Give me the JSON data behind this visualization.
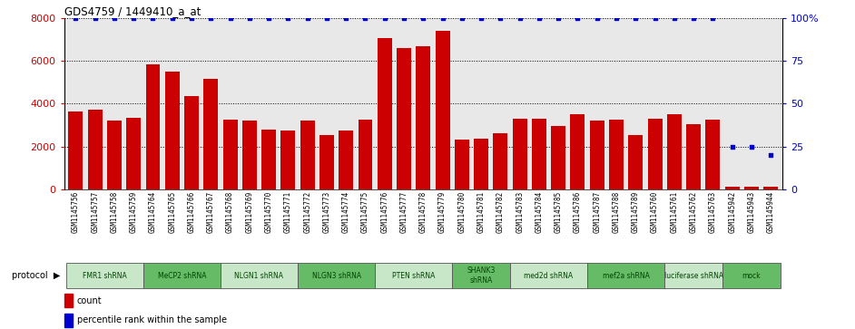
{
  "title": "GDS4759 / 1449410_a_at",
  "samples": [
    "GSM1145756",
    "GSM1145757",
    "GSM1145758",
    "GSM1145759",
    "GSM1145764",
    "GSM1145765",
    "GSM1145766",
    "GSM1145767",
    "GSM1145768",
    "GSM1145769",
    "GSM1145770",
    "GSM1145771",
    "GSM1145772",
    "GSM1145773",
    "GSM1145774",
    "GSM1145775",
    "GSM1145776",
    "GSM1145777",
    "GSM1145778",
    "GSM1145779",
    "GSM1145780",
    "GSM1145781",
    "GSM1145782",
    "GSM1145783",
    "GSM1145784",
    "GSM1145785",
    "GSM1145786",
    "GSM1145787",
    "GSM1145788",
    "GSM1145789",
    "GSM1145760",
    "GSM1145761",
    "GSM1145762",
    "GSM1145763",
    "GSM1145942",
    "GSM1145943",
    "GSM1145944"
  ],
  "counts": [
    3650,
    3700,
    3200,
    3350,
    5850,
    5500,
    4350,
    5150,
    3250,
    3200,
    2800,
    2750,
    3200,
    2550,
    2750,
    3250,
    7050,
    6600,
    6700,
    7400,
    2300,
    2350,
    2600,
    3300,
    3300,
    2950,
    3500,
    3200,
    3250,
    2550,
    3300,
    3500,
    3050,
    3250,
    100,
    100,
    100
  ],
  "percentiles": [
    100,
    100,
    100,
    100,
    100,
    100,
    100,
    100,
    100,
    100,
    100,
    100,
    100,
    100,
    100,
    100,
    100,
    100,
    100,
    100,
    100,
    100,
    100,
    100,
    100,
    100,
    100,
    100,
    100,
    100,
    100,
    100,
    100,
    100,
    25,
    25,
    20
  ],
  "protocols": [
    {
      "label": "FMR1 shRNA",
      "start": 0,
      "end": 4,
      "color": "#c8e6c8"
    },
    {
      "label": "MeCP2 shRNA",
      "start": 4,
      "end": 8,
      "color": "#66bb66"
    },
    {
      "label": "NLGN1 shRNA",
      "start": 8,
      "end": 12,
      "color": "#c8e6c8"
    },
    {
      "label": "NLGN3 shRNA",
      "start": 12,
      "end": 16,
      "color": "#66bb66"
    },
    {
      "label": "PTEN shRNA",
      "start": 16,
      "end": 20,
      "color": "#c8e6c8"
    },
    {
      "label": "SHANK3\nshRNA",
      "start": 20,
      "end": 23,
      "color": "#66bb66"
    },
    {
      "label": "med2d shRNA",
      "start": 23,
      "end": 27,
      "color": "#c8e6c8"
    },
    {
      "label": "mef2a shRNA",
      "start": 27,
      "end": 31,
      "color": "#66bb66"
    },
    {
      "label": "luciferase shRNA",
      "start": 31,
      "end": 34,
      "color": "#c8e6c8"
    },
    {
      "label": "mock",
      "start": 34,
      "end": 37,
      "color": "#66bb66"
    }
  ],
  "bar_color": "#cc0000",
  "dot_color": "#0000cc",
  "left_ylim": [
    0,
    8000
  ],
  "right_ylim": [
    0,
    100
  ],
  "left_yticks": [
    0,
    2000,
    4000,
    6000,
    8000
  ],
  "right_yticks": [
    0,
    25,
    50,
    75,
    100
  ],
  "grid_values": [
    2000,
    4000,
    6000,
    8000
  ],
  "bg_color": "#e8e8e8",
  "legend_count_color": "#cc0000",
  "legend_percentile_color": "#0000cc"
}
